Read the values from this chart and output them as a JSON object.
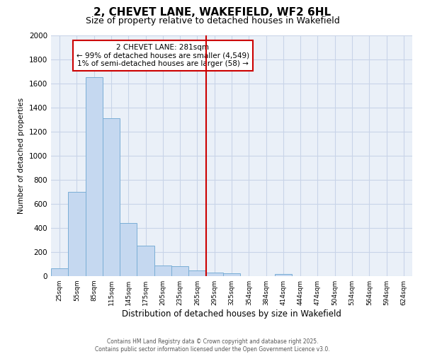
{
  "title": "2, CHEVET LANE, WAKEFIELD, WF2 6HL",
  "subtitle": "Size of property relative to detached houses in Wakefield",
  "xlabel": "Distribution of detached houses by size in Wakefield",
  "ylabel": "Number of detached properties",
  "categories": [
    "25sqm",
    "55sqm",
    "85sqm",
    "115sqm",
    "145sqm",
    "175sqm",
    "205sqm",
    "235sqm",
    "265sqm",
    "295sqm",
    "325sqm",
    "354sqm",
    "384sqm",
    "414sqm",
    "444sqm",
    "474sqm",
    "504sqm",
    "534sqm",
    "564sqm",
    "594sqm",
    "624sqm"
  ],
  "values": [
    65,
    700,
    1655,
    1310,
    440,
    255,
    90,
    85,
    50,
    30,
    25,
    0,
    0,
    20,
    0,
    0,
    0,
    0,
    0,
    0,
    0
  ],
  "bar_color": "#c5d8f0",
  "bar_edge_color": "#7aaed6",
  "marker_label": "2 CHEVET LANE: 281sqm",
  "annotation_line1": "← 99% of detached houses are smaller (4,549)",
  "annotation_line2": "1% of semi-detached houses are larger (58) →",
  "marker_color": "#cc0000",
  "ylim": [
    0,
    2000
  ],
  "yticks": [
    0,
    200,
    400,
    600,
    800,
    1000,
    1200,
    1400,
    1600,
    1800,
    2000
  ],
  "grid_color": "#c8d4e8",
  "background_color": "#eaf0f8",
  "footer_line1": "Contains HM Land Registry data © Crown copyright and database right 2025.",
  "footer_line2": "Contains public sector information licensed under the Open Government Licence v3.0.",
  "title_fontsize": 11,
  "subtitle_fontsize": 9
}
